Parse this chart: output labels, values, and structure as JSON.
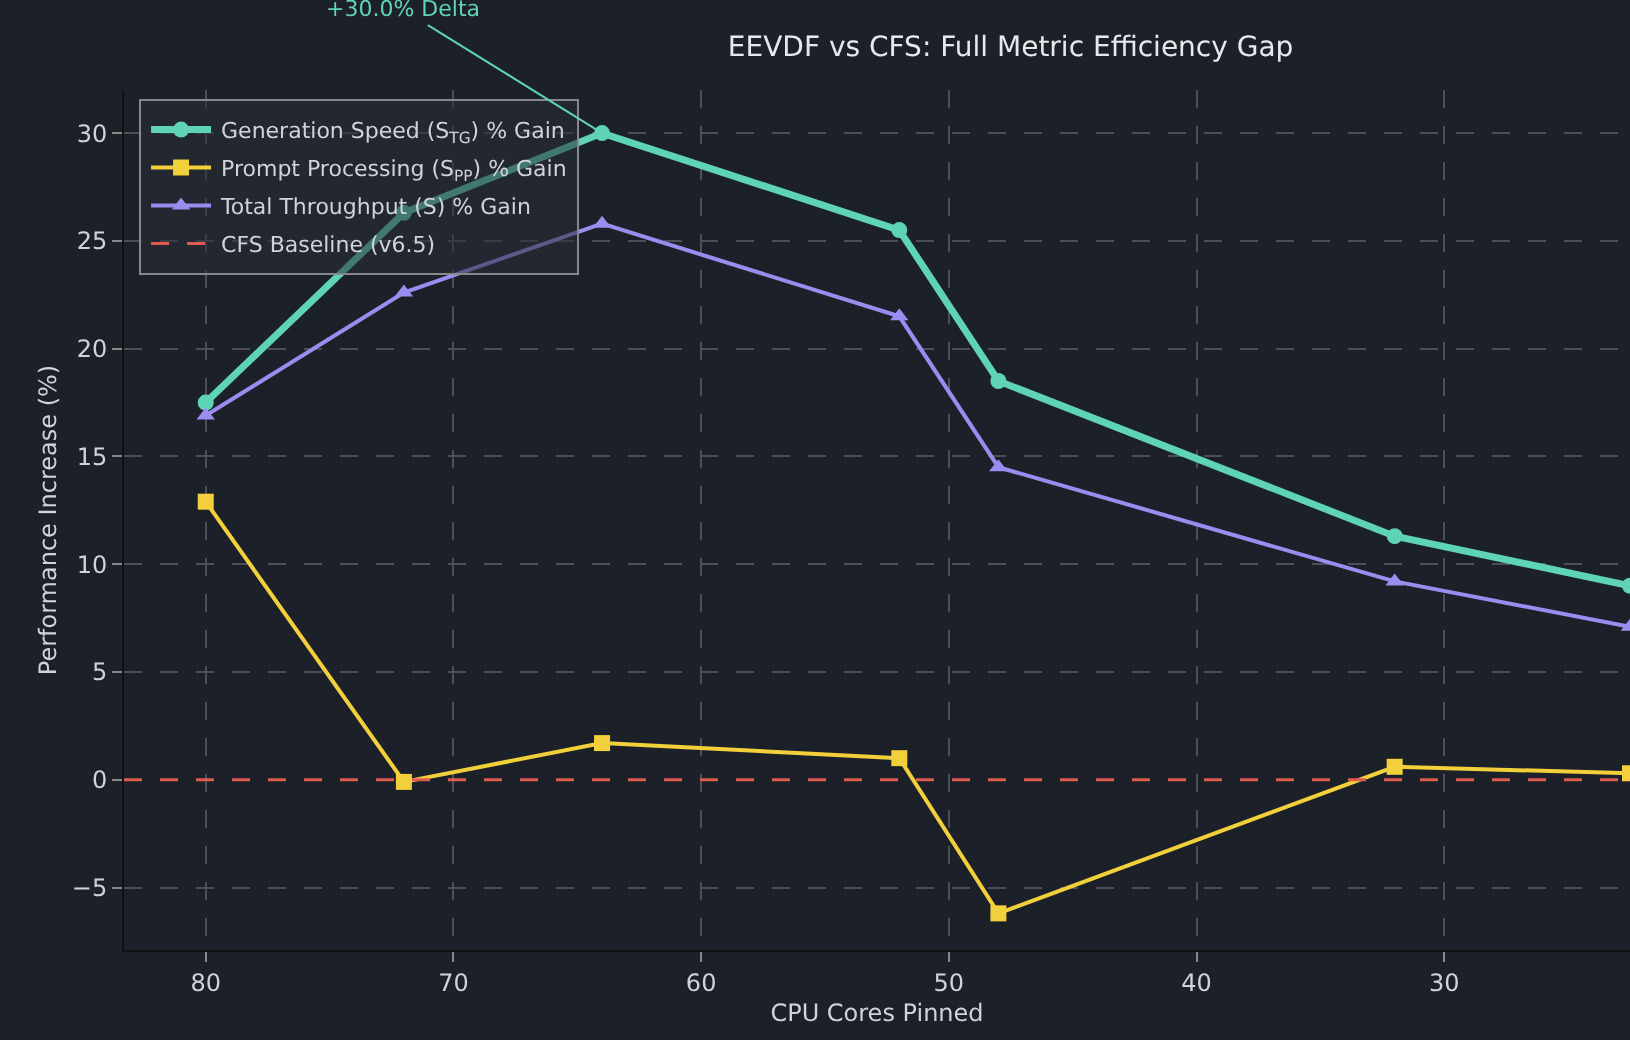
{
  "chart_data": {
    "type": "line",
    "title": "EEVDF vs CFS: Full Metric Efficiency Gap",
    "xlabel": "CPU Cores Pinned",
    "ylabel": "Performance Increase (%)",
    "x": [
      80,
      72,
      64,
      52,
      48,
      32,
      22.5
    ],
    "series": [
      {
        "name": "Generation Speed (S$_{TG}$) % Gain",
        "color": "#5fd3b5",
        "values": [
          17.5,
          26.3,
          30.0,
          25.5,
          18.5,
          11.3,
          9.0
        ],
        "marker": "circle"
      },
      {
        "name": "Prompt Processing (S$_{PP}$) % Gain",
        "color": "#f2d03b",
        "values": [
          12.9,
          -0.1,
          1.7,
          1.0,
          -6.2,
          0.6,
          0.3
        ],
        "marker": "square"
      },
      {
        "name": "Total Throughput (S) % Gain",
        "color": "#9b8cf0",
        "values": [
          16.9,
          22.6,
          25.8,
          21.5,
          14.5,
          9.2,
          7.1
        ],
        "marker": "triangle"
      }
    ],
    "ref_lines": [
      {
        "axis": "y",
        "value": 0,
        "label": "CFS Baseline (v6.5)",
        "color": "#e05a4f",
        "line_style": "dashed"
      }
    ],
    "annotations": [
      {
        "text": "+30.0% Delta",
        "x": 64,
        "y": 30.0
      }
    ],
    "xlim": [
      83.3,
      22.5
    ],
    "ylim": [
      -7.9,
      32
    ],
    "xticks": [
      80,
      70,
      60,
      50,
      40,
      30
    ],
    "yticks": [
      -5,
      0,
      5,
      10,
      15,
      20,
      25,
      30
    ],
    "grid": true,
    "legend": "top left",
    "line_style": "solid"
  }
}
